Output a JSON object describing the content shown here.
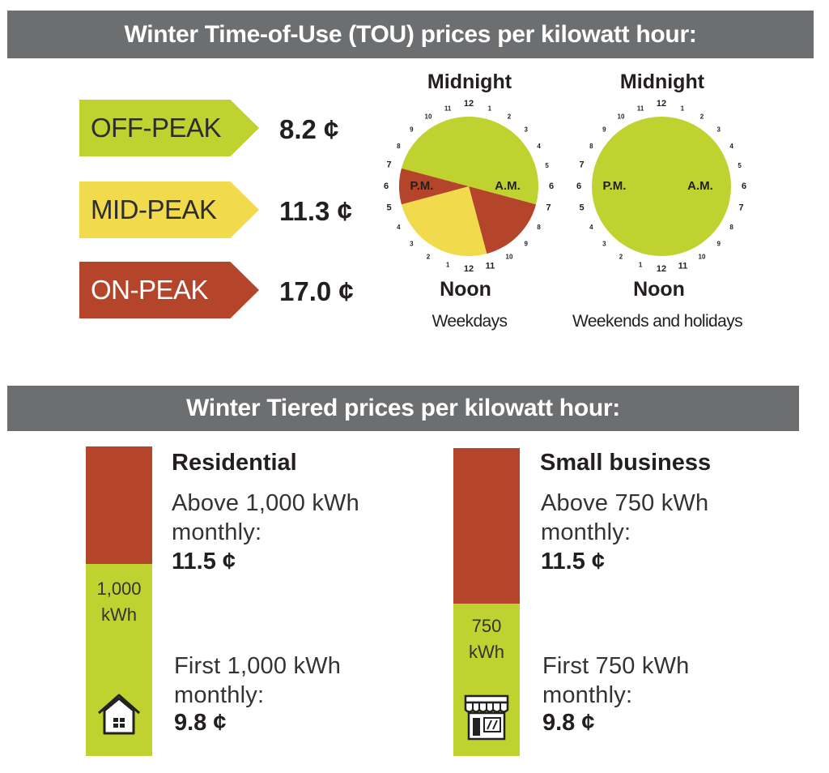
{
  "tou": {
    "title": "Winter Time-of-Use (TOU) prices per kilowatt hour:",
    "tiers": [
      {
        "label": "OFF-PEAK",
        "price": "8.2 ¢",
        "color": "#bfd230"
      },
      {
        "label": "MID-PEAK",
        "price": "11.3 ¢",
        "color": "#f1da4c"
      },
      {
        "label": "ON-PEAK",
        "price": "17.0 ¢",
        "color": "#b5452a"
      }
    ],
    "clocks": [
      {
        "top": "Midnight",
        "bottom": "Noon",
        "caption": "Weekdays",
        "am": "A.M.",
        "pm": "P.M.",
        "numbers_right": [
          "12",
          "1",
          "2",
          "3",
          "4",
          "5",
          "6",
          "7",
          "8",
          "9",
          "10",
          "11"
        ],
        "numbers_left": [
          "12",
          "1",
          "2",
          "3",
          "4",
          "5",
          "6",
          "7",
          "8",
          "9",
          "10",
          "11"
        ],
        "periods": [
          {
            "from_hour": 19,
            "to_hour": 7,
            "tier": "OFF-PEAK"
          },
          {
            "from_hour": 7,
            "to_hour": 11,
            "tier": "ON-PEAK"
          },
          {
            "from_hour": 11,
            "to_hour": 17,
            "tier": "MID-PEAK"
          },
          {
            "from_hour": 17,
            "to_hour": 19,
            "tier": "ON-PEAK"
          }
        ]
      },
      {
        "top": "Midnight",
        "bottom": "Noon",
        "caption": "Weekends and holidays",
        "am": "A.M.",
        "pm": "P.M.",
        "numbers_right": [
          "12",
          "1",
          "2",
          "3",
          "4",
          "5",
          "6",
          "7",
          "8",
          "9",
          "10",
          "11"
        ],
        "numbers_left": [
          "12",
          "1",
          "2",
          "3",
          "4",
          "5",
          "6",
          "7",
          "8",
          "9",
          "10",
          "11"
        ],
        "periods": [
          {
            "from_hour": 0,
            "to_hour": 24,
            "tier": "OFF-PEAK"
          }
        ]
      }
    ]
  },
  "tiered": {
    "title": "Winter Tiered prices per kilowatt hour:",
    "colors": {
      "upper": "#b5452a",
      "lower": "#bfd230"
    },
    "groups": [
      {
        "name": "Residential",
        "threshold_label": "1,000 kWh",
        "icon": "house-icon",
        "upper_text": "Above 1,000 kWh monthly:",
        "upper_price": "11.5 ¢",
        "lower_text": "First 1,000 kWh monthly:",
        "lower_price": "9.8 ¢"
      },
      {
        "name": "Small business",
        "threshold_label": "750 kWh",
        "icon": "storefront-icon",
        "upper_text": "Above 750 kWh monthly:",
        "upper_price": "11.5 ¢",
        "lower_text": "First 750 kWh monthly:",
        "lower_price": "9.8 ¢"
      }
    ]
  }
}
